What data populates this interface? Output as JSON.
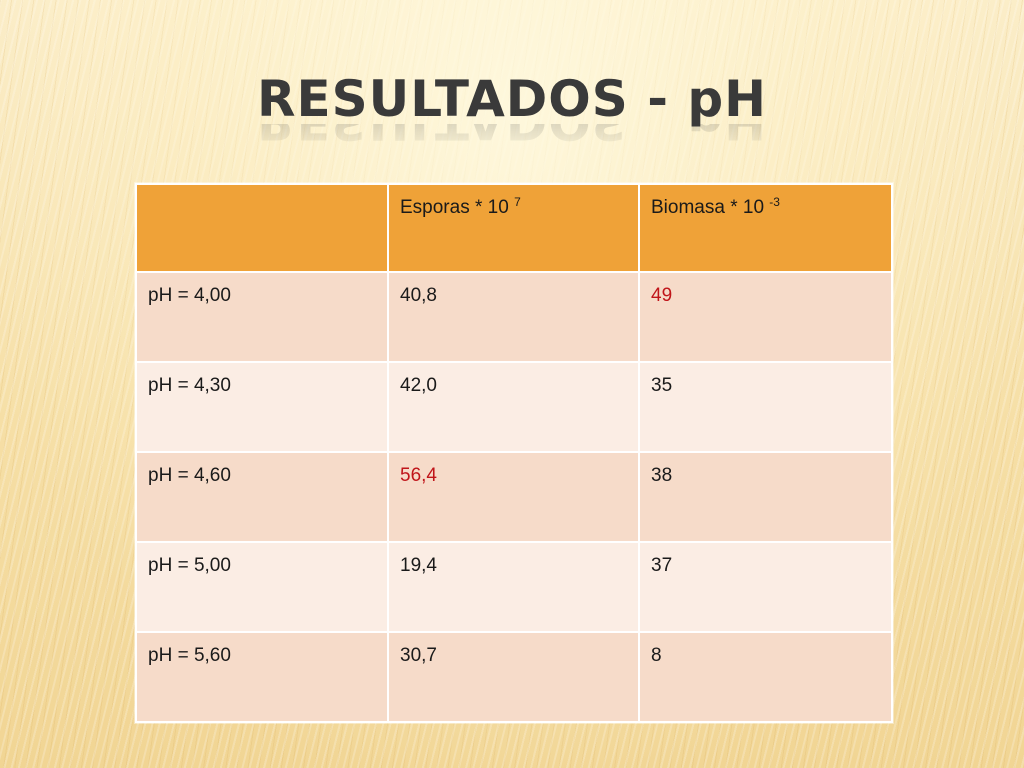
{
  "slide": {
    "title": "RESULTADOS - pH"
  },
  "table": {
    "header": {
      "corner": "",
      "col1_text": "Esporas * 10 ",
      "col1_exp": "7",
      "col2_text": "Biomasa * 10 ",
      "col2_exp": "-3"
    },
    "rows": [
      {
        "label": "pH = 4,00",
        "esporas": "40,8",
        "biomasa": "49"
      },
      {
        "label": "pH = 4,30",
        "esporas": "42,0",
        "biomasa": "35"
      },
      {
        "label": "pH = 4,60",
        "esporas": "56,4",
        "biomasa": "38"
      },
      {
        "label": "pH = 5,00",
        "esporas": "19,4",
        "biomasa": "37"
      },
      {
        "label": "pH = 5,60",
        "esporas": "30,7",
        "biomasa": "8"
      }
    ]
  },
  "colors": {
    "header_fill": "#efa238",
    "row_fill_dark": "#f6dbc9",
    "row_fill_light": "#fbede4",
    "highlight_text": "#c0151a"
  },
  "highlights": {
    "max_biomasa": "49",
    "max_esporas": "56,4"
  }
}
